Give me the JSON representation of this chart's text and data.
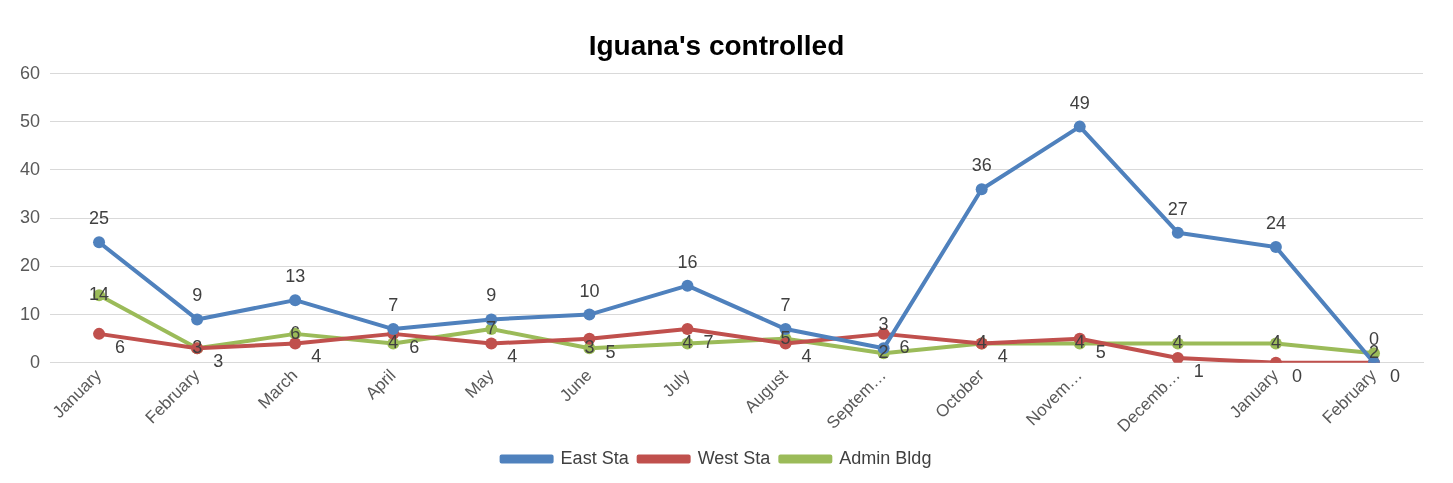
{
  "chart_data": {
    "type": "line",
    "title": "Iguana's controlled",
    "categories": [
      "January",
      "February",
      "March",
      "April",
      "May",
      "June",
      "July",
      "August",
      "Septem…",
      "October",
      "Novem…",
      "Decemb…",
      "January",
      "February"
    ],
    "series": [
      {
        "name": "East Sta",
        "color": "#4f81bd",
        "values": [
          25,
          9,
          13,
          7,
          9,
          10,
          16,
          7,
          3,
          36,
          49,
          27,
          24,
          0
        ]
      },
      {
        "name": "West Sta",
        "color": "#c0504d",
        "values": [
          6,
          3,
          4,
          6,
          4,
          5,
          7,
          4,
          6,
          4,
          5,
          1,
          0,
          0
        ]
      },
      {
        "name": "Admin Bldg",
        "color": "#9bbb59",
        "values": [
          14,
          3,
          6,
          4,
          7,
          3,
          4,
          5,
          2,
          4,
          4,
          4,
          4,
          2
        ]
      }
    ],
    "ylim": [
      0,
      60
    ],
    "yticks": [
      0,
      10,
      20,
      30,
      40,
      50,
      60
    ],
    "grid": "y",
    "legend": "bottom",
    "marker": "circle",
    "line_style": "solid",
    "data_labels": true
  }
}
